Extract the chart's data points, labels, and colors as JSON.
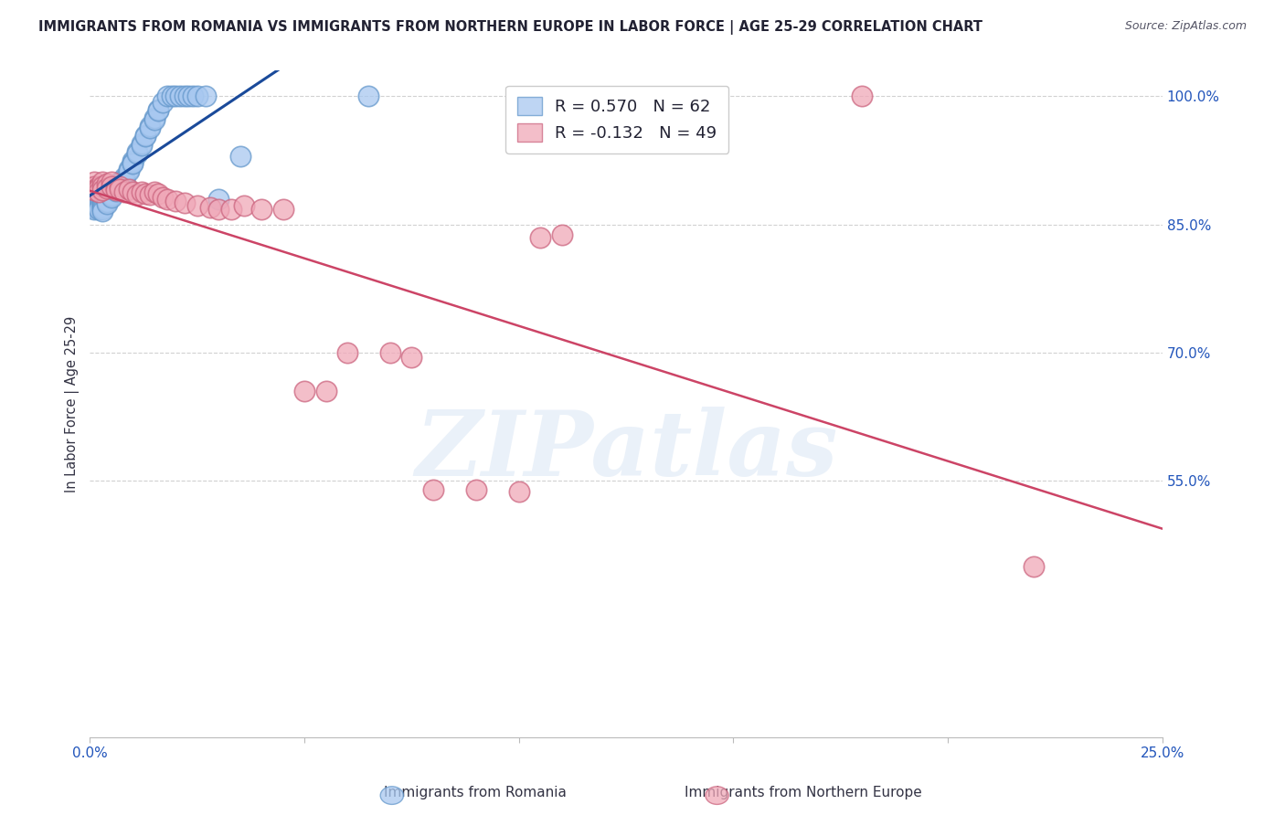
{
  "title": "IMMIGRANTS FROM ROMANIA VS IMMIGRANTS FROM NORTHERN EUROPE IN LABOR FORCE | AGE 25-29 CORRELATION CHART",
  "source": "Source: ZipAtlas.com",
  "ylabel": "In Labor Force | Age 25-29",
  "xlim": [
    0.0,
    0.25
  ],
  "ylim": [
    0.25,
    1.03
  ],
  "ytick_positions": [
    0.55,
    0.7,
    0.85,
    1.0
  ],
  "ytick_labels": [
    "55.0%",
    "70.0%",
    "85.0%",
    "100.0%"
  ],
  "xtick_positions": [
    0.0,
    0.05,
    0.1,
    0.15,
    0.2,
    0.25
  ],
  "xtick_labels": [
    "0.0%",
    "",
    "",
    "",
    "",
    "25.0%"
  ],
  "romania_color": "#a8c8f0",
  "romania_edge": "#6699cc",
  "northern_color": "#f0a8b8",
  "northern_edge": "#cc6680",
  "trend_blue": "#1a4a9a",
  "trend_pink": "#cc4466",
  "R_romania": 0.57,
  "N_romania": 62,
  "R_northern": -0.132,
  "N_northern": 49,
  "romania_x": [
    0.001,
    0.001,
    0.001,
    0.002,
    0.002,
    0.002,
    0.002,
    0.003,
    0.003,
    0.003,
    0.003,
    0.003,
    0.003,
    0.004,
    0.004,
    0.004,
    0.004,
    0.005,
    0.005,
    0.005,
    0.005,
    0.005,
    0.006,
    0.006,
    0.006,
    0.006,
    0.007,
    0.007,
    0.007,
    0.008,
    0.008,
    0.008,
    0.009,
    0.009,
    0.01,
    0.01,
    0.01,
    0.011,
    0.011,
    0.012,
    0.012,
    0.013,
    0.013,
    0.014,
    0.014,
    0.015,
    0.015,
    0.016,
    0.016,
    0.017,
    0.018,
    0.019,
    0.02,
    0.021,
    0.022,
    0.023,
    0.024,
    0.025,
    0.027,
    0.03,
    0.035,
    0.065
  ],
  "romania_y": [
    0.87,
    0.87,
    0.868,
    0.872,
    0.873,
    0.87,
    0.868,
    0.875,
    0.873,
    0.872,
    0.87,
    0.868,
    0.866,
    0.88,
    0.878,
    0.876,
    0.874,
    0.89,
    0.888,
    0.886,
    0.884,
    0.882,
    0.895,
    0.893,
    0.891,
    0.889,
    0.9,
    0.898,
    0.896,
    0.905,
    0.903,
    0.901,
    0.915,
    0.913,
    0.925,
    0.923,
    0.921,
    0.935,
    0.933,
    0.945,
    0.943,
    0.955,
    0.953,
    0.965,
    0.963,
    0.975,
    0.973,
    0.985,
    0.983,
    0.993,
    1.0,
    1.0,
    1.0,
    1.0,
    1.0,
    1.0,
    1.0,
    1.0,
    1.0,
    0.88,
    0.93,
    1.0
  ],
  "northern_x": [
    0.001,
    0.001,
    0.001,
    0.002,
    0.002,
    0.002,
    0.003,
    0.003,
    0.003,
    0.004,
    0.004,
    0.005,
    0.005,
    0.006,
    0.006,
    0.007,
    0.007,
    0.008,
    0.009,
    0.01,
    0.011,
    0.012,
    0.013,
    0.014,
    0.015,
    0.016,
    0.017,
    0.018,
    0.02,
    0.022,
    0.025,
    0.028,
    0.03,
    0.033,
    0.036,
    0.04,
    0.045,
    0.05,
    0.055,
    0.06,
    0.07,
    0.075,
    0.08,
    0.09,
    0.1,
    0.105,
    0.11,
    0.18,
    0.22
  ],
  "northern_y": [
    0.9,
    0.895,
    0.89,
    0.895,
    0.893,
    0.888,
    0.9,
    0.895,
    0.89,
    0.898,
    0.893,
    0.9,
    0.895,
    0.893,
    0.89,
    0.895,
    0.892,
    0.888,
    0.892,
    0.888,
    0.885,
    0.888,
    0.886,
    0.885,
    0.888,
    0.886,
    0.882,
    0.88,
    0.878,
    0.875,
    0.872,
    0.87,
    0.868,
    0.868,
    0.872,
    0.868,
    0.868,
    0.655,
    0.655,
    0.7,
    0.7,
    0.695,
    0.54,
    0.54,
    0.538,
    0.835,
    0.838,
    1.0,
    0.45
  ]
}
